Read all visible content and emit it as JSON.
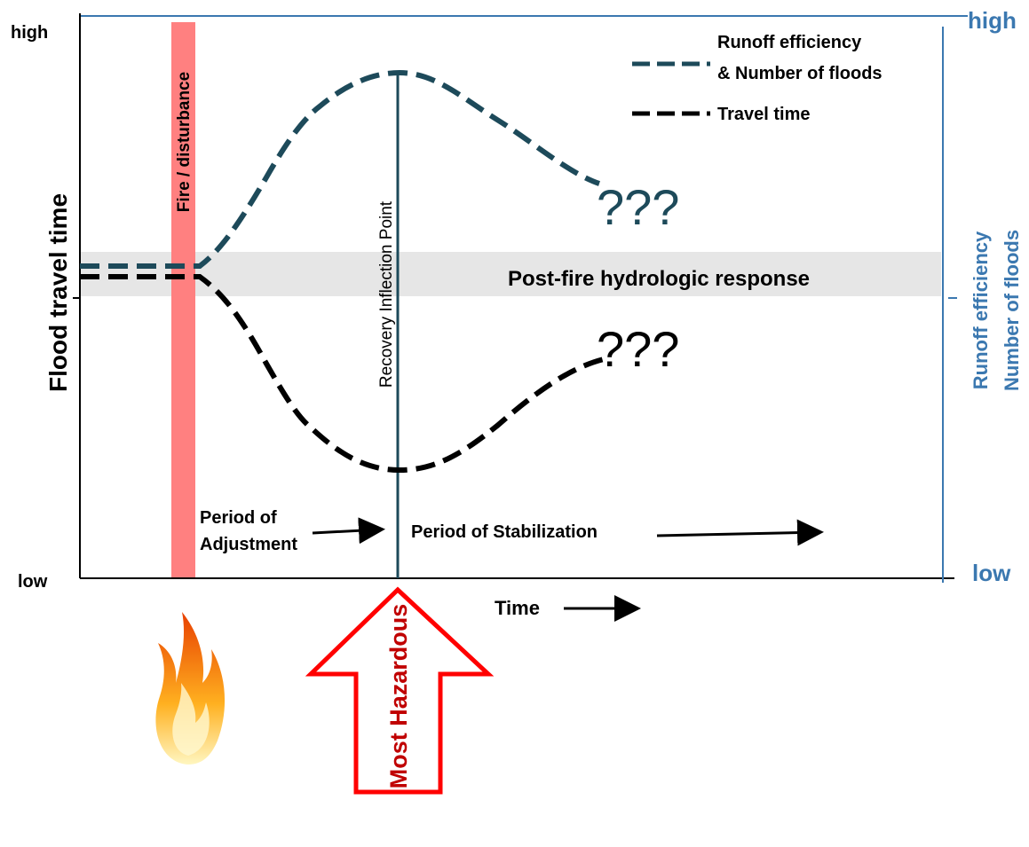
{
  "left_axis": {
    "high": "high",
    "low": "low",
    "label": "Flood travel time"
  },
  "right_axis": {
    "high": "high",
    "low": "low",
    "label_lines": [
      "Runoff efficiency",
      "Number of floods"
    ]
  },
  "x_axis": {
    "label": "Time"
  },
  "fire_bar": "Fire / disturbance",
  "inflection_line": "Recovery Inflection Point",
  "band": "Post-fire hydrologic response",
  "legend": {
    "runoff": [
      "Runoff efficiency",
      "& Number of floods"
    ],
    "travel": "Travel time"
  },
  "unknowns": [
    "???",
    "???"
  ],
  "periods": {
    "adjustment": [
      "Period of",
      "Adjustment"
    ],
    "stabilization": "Period of Stabilization"
  },
  "hazard": "Most Hazardous"
}
